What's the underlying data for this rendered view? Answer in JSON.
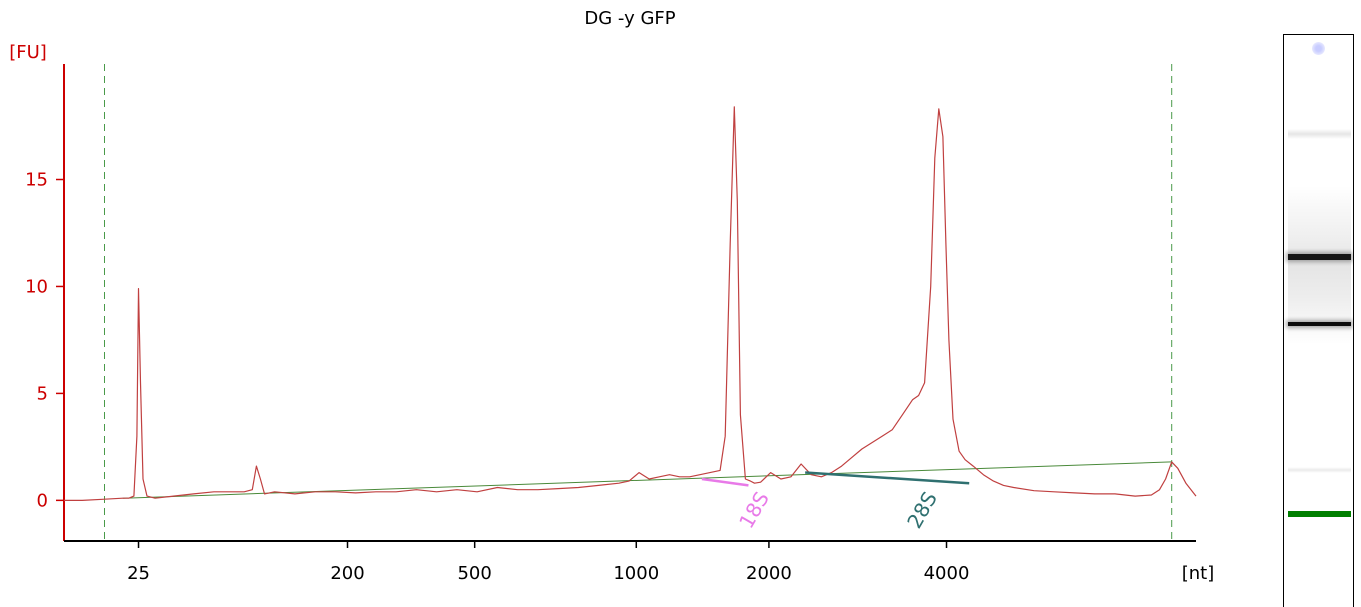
{
  "chart_data": {
    "type": "line",
    "title": "DG -y GFP",
    "ylabel": "[FU]",
    "xlabel": "[nt]",
    "ylim": [
      -1.9,
      20.4
    ],
    "y_ticks": [
      0,
      5,
      10,
      15
    ],
    "x_tick_labels": [
      "25",
      "200",
      "500",
      "1000",
      "2000",
      "4000"
    ],
    "x_tick_time": [
      22.78,
      33.1,
      39.38,
      47.36,
      53.91,
      62.68
    ],
    "xlim": [
      19.1,
      75.0
    ],
    "x_unit": "seconds (migration time)",
    "series": [
      {
        "color": "#c04040",
        "x": [
          19.1,
          20.0,
          21.0,
          22.0,
          22.3,
          22.55,
          22.7,
          22.78,
          22.88,
          23.0,
          23.2,
          23.6,
          24.5,
          25.5,
          26.5,
          27.5,
          28.0,
          28.4,
          28.6,
          28.8,
          29.0,
          29.5,
          30.5,
          31.5,
          32.5,
          33.5,
          34.5,
          35.5,
          36.5,
          37.5,
          38.5,
          39.5,
          40.5,
          41.5,
          42.5,
          43.5,
          44.5,
          45.5,
          46.5,
          47.0,
          47.5,
          48.0,
          48.5,
          49.0,
          49.5,
          50.0,
          50.5,
          51.0,
          51.5,
          51.75,
          52.0,
          52.2,
          52.35,
          52.5,
          52.75,
          53.0,
          53.2,
          53.5,
          54.0,
          54.5,
          55.0,
          55.5,
          56.0,
          56.5,
          57.0,
          57.5,
          58.0,
          58.5,
          59.0,
          59.5,
          60.0,
          60.5,
          61.0,
          61.3,
          61.6,
          61.9,
          62.1,
          62.3,
          62.5,
          62.65,
          62.8,
          63.0,
          63.3,
          63.6,
          64.0,
          64.5,
          65.0,
          65.5,
          66.0,
          67.0,
          68.0,
          69.0,
          70.0,
          71.0,
          72.0,
          72.8,
          73.2,
          73.5,
          73.8,
          74.1,
          74.5,
          75.0
        ],
        "y": [
          0.0,
          0.0,
          0.05,
          0.1,
          0.1,
          0.2,
          3.0,
          9.9,
          5.5,
          1.0,
          0.2,
          0.1,
          0.2,
          0.3,
          0.4,
          0.4,
          0.4,
          0.5,
          1.6,
          1.0,
          0.3,
          0.4,
          0.3,
          0.4,
          0.4,
          0.35,
          0.4,
          0.4,
          0.5,
          0.4,
          0.5,
          0.4,
          0.6,
          0.5,
          0.5,
          0.55,
          0.6,
          0.7,
          0.8,
          0.9,
          1.3,
          1.0,
          1.1,
          1.2,
          1.1,
          1.1,
          1.2,
          1.3,
          1.4,
          3.0,
          12.0,
          18.4,
          14.0,
          4.0,
          1.0,
          0.9,
          0.8,
          0.85,
          1.3,
          1.0,
          1.1,
          1.7,
          1.2,
          1.1,
          1.3,
          1.6,
          2.0,
          2.4,
          2.7,
          3.0,
          3.3,
          4.0,
          4.7,
          4.9,
          5.5,
          10.0,
          16.0,
          18.3,
          17.0,
          12.0,
          7.5,
          3.8,
          2.3,
          1.9,
          1.6,
          1.2,
          0.9,
          0.7,
          0.6,
          0.45,
          0.4,
          0.35,
          0.3,
          0.3,
          0.2,
          0.25,
          0.5,
          1.0,
          1.8,
          1.5,
          0.8,
          0.2
        ]
      }
    ],
    "baseline_line": {
      "color": "#4a8a3a",
      "x": [
        22.0,
        73.8
      ],
      "y": [
        0.1,
        1.8
      ]
    },
    "peaks": [
      {
        "label": "18S",
        "color": "#e87ae8",
        "x_from": 50.6,
        "x_to": 52.9,
        "y_from": 1.0,
        "y_to": 0.7,
        "label_x": 53.0
      },
      {
        "label": "28S",
        "color": "#2f7070",
        "x_from": 55.7,
        "x_to": 63.8,
        "y_from": 1.3,
        "y_to": 0.8,
        "label_x": 61.3
      }
    ],
    "marker_lines_x": [
      21.1,
      73.8
    ],
    "gel_bands": [
      {
        "color": "#000000",
        "opacity": 0.9,
        "thickness": 6
      },
      {
        "color": "#000000",
        "opacity": 0.95,
        "thickness": 4
      },
      {
        "color": "#007f00",
        "opacity": 1.0,
        "thickness": 6
      }
    ]
  }
}
